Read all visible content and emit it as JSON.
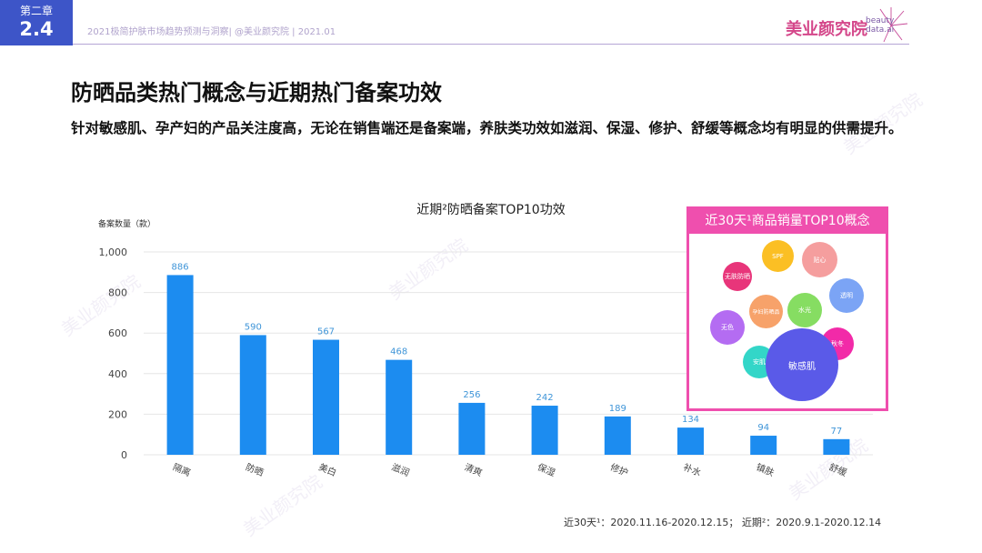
{
  "header": {
    "chapter_label": "第二章",
    "chapter_number": "2.4",
    "report_info": "2021极简护肤市场趋势预测与洞察| @美业颜究院 | 2021.01",
    "brand_name": "美业颜究院",
    "brand_sub_1": "beauty",
    "brand_sub_2": "data.ai",
    "watermark": "美业颜究院"
  },
  "title": "防晒品类热门概念与近期热门备案功效",
  "description": "针对敏感肌、孕产妇的产品关注度高，无论在销售端还是备案端，养肤类功效如滋润、保湿、修护、舒缓等概念均有明显的供需提升。",
  "chart_data": {
    "type": "bar",
    "title": "近期²防晒备案TOP10功效",
    "ylabel": "备案数量（款）",
    "ylim": [
      0,
      1000
    ],
    "yticks": [
      0,
      200,
      400,
      600,
      800,
      1000
    ],
    "ytick_labels": [
      "0",
      "200",
      "400",
      "600",
      "800",
      "1,000"
    ],
    "grid": true,
    "categories": [
      "隔离",
      "防晒",
      "美白",
      "滋润",
      "清爽",
      "保湿",
      "修护",
      "补水",
      "镇肤",
      "舒缓"
    ],
    "values": [
      886,
      590,
      567,
      468,
      256,
      242,
      189,
      134,
      94,
      77
    ],
    "bar_color": "#1c8cf0",
    "label_color": "#3f95d8"
  },
  "concepts": {
    "title": "近30天¹商品销量TOP10概念",
    "border_color": "#ef4fae",
    "bubbles": [
      {
        "label": "无肤防晒",
        "color": "#e8357a"
      },
      {
        "label": "SPF",
        "color": "#fbbf24"
      },
      {
        "label": "贴心",
        "color": "#f59e9e"
      },
      {
        "label": "透明",
        "color": "#7ba4f5"
      },
      {
        "label": "孕妇防晒品",
        "color": "#f7a26a"
      },
      {
        "label": "水光",
        "color": "#86dd62"
      },
      {
        "label": "无色",
        "color": "#b46cf2"
      },
      {
        "label": "秋冬",
        "color": "#f22aa8"
      },
      {
        "label": "安肌",
        "color": "#33d6c8"
      },
      {
        "label": "敏感肌",
        "color": "#5a5ae8"
      }
    ]
  },
  "footnote": "近30天¹：2020.11.16-2020.12.15；   近期²：2020.9.1-2020.12.14"
}
